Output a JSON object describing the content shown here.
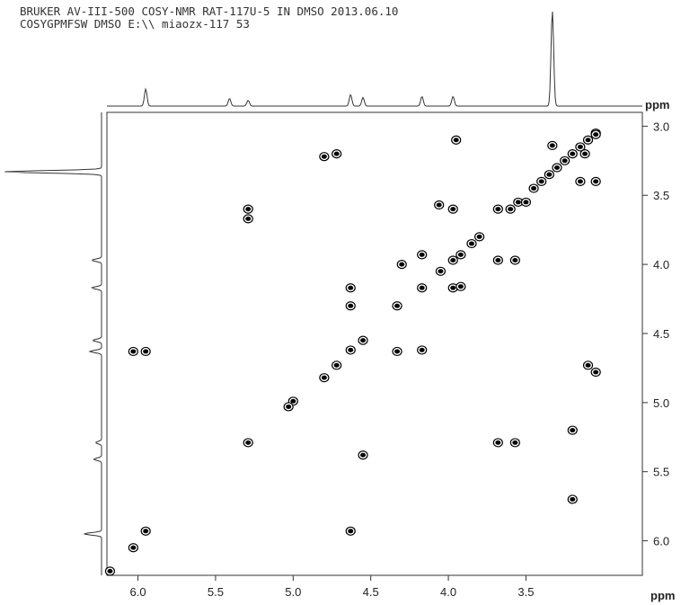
{
  "header": {
    "line1": "BRUKER AV-III-500 COSY-NMR RAT-117U-5 IN DMSO 2013.06.10",
    "line2": "COSYGPMFSW DMSO E:\\\\ miaozx-117 53"
  },
  "chart_data": {
    "type": "scatter",
    "title": "",
    "xlabel": "ppm",
    "ylabel": "ppm",
    "xlim": [
      6.2,
      2.75
    ],
    "ylim": [
      2.9,
      6.25
    ],
    "x_axis_reversed": true,
    "y_axis_increases_downward": true,
    "x_tick_labels": [
      "6.0",
      "5.5",
      "5.0",
      "4.5",
      "4.0",
      "3.5"
    ],
    "y_tick_labels": [
      "3.0",
      "3.5",
      "4.0",
      "4.5",
      "5.0",
      "5.5",
      "6.0"
    ],
    "grid": false,
    "projection_peaks_ppm": [
      {
        "ppm": 5.95,
        "height": 0.18
      },
      {
        "ppm": 5.41,
        "height": 0.08
      },
      {
        "ppm": 5.29,
        "height": 0.06
      },
      {
        "ppm": 4.63,
        "height": 0.12
      },
      {
        "ppm": 4.55,
        "height": 0.09
      },
      {
        "ppm": 4.17,
        "height": 0.1
      },
      {
        "ppm": 3.97,
        "height": 0.1
      },
      {
        "ppm": 3.33,
        "height": 1.0
      }
    ],
    "series": [
      {
        "values": [
          {
            "x": 6.03,
            "y": 4.63
          },
          {
            "x": 5.95,
            "y": 4.63
          },
          {
            "x": 5.95,
            "y": 5.93
          },
          {
            "x": 6.03,
            "y": 6.05
          },
          {
            "x": 6.18,
            "y": 6.22
          },
          {
            "x": 5.29,
            "y": 3.6
          },
          {
            "x": 5.29,
            "y": 3.67
          },
          {
            "x": 5.29,
            "y": 5.29
          },
          {
            "x": 4.8,
            "y": 3.22
          },
          {
            "x": 4.72,
            "y": 3.2
          },
          {
            "x": 4.63,
            "y": 4.17
          },
          {
            "x": 4.63,
            "y": 4.3
          },
          {
            "x": 4.63,
            "y": 4.62
          },
          {
            "x": 4.55,
            "y": 4.55
          },
          {
            "x": 4.63,
            "y": 5.93
          },
          {
            "x": 4.55,
            "y": 5.38
          },
          {
            "x": 4.72,
            "y": 4.73
          },
          {
            "x": 4.8,
            "y": 4.82
          },
          {
            "x": 5.0,
            "y": 4.99
          },
          {
            "x": 5.03,
            "y": 5.03
          },
          {
            "x": 4.33,
            "y": 4.3
          },
          {
            "x": 4.33,
            "y": 4.63
          },
          {
            "x": 4.3,
            "y": 4.0
          },
          {
            "x": 4.17,
            "y": 3.93
          },
          {
            "x": 4.17,
            "y": 4.17
          },
          {
            "x": 4.17,
            "y": 4.62
          },
          {
            "x": 4.05,
            "y": 4.05
          },
          {
            "x": 4.06,
            "y": 3.57
          },
          {
            "x": 3.97,
            "y": 3.6
          },
          {
            "x": 3.97,
            "y": 3.97
          },
          {
            "x": 3.92,
            "y": 3.93
          },
          {
            "x": 3.97,
            "y": 4.17
          },
          {
            "x": 3.92,
            "y": 4.16
          },
          {
            "x": 3.95,
            "y": 3.1
          },
          {
            "x": 3.85,
            "y": 3.85
          },
          {
            "x": 3.8,
            "y": 3.8
          },
          {
            "x": 3.68,
            "y": 3.6
          },
          {
            "x": 3.68,
            "y": 3.97
          },
          {
            "x": 3.57,
            "y": 3.97
          },
          {
            "x": 3.68,
            "y": 5.29
          },
          {
            "x": 3.57,
            "y": 5.29
          },
          {
            "x": 3.6,
            "y": 3.6
          },
          {
            "x": 3.55,
            "y": 3.55
          },
          {
            "x": 3.5,
            "y": 3.55
          },
          {
            "x": 3.45,
            "y": 3.45
          },
          {
            "x": 3.4,
            "y": 3.4
          },
          {
            "x": 3.35,
            "y": 3.35
          },
          {
            "x": 3.3,
            "y": 3.3
          },
          {
            "x": 3.25,
            "y": 3.25
          },
          {
            "x": 3.2,
            "y": 3.2
          },
          {
            "x": 3.15,
            "y": 3.15
          },
          {
            "x": 3.1,
            "y": 3.1
          },
          {
            "x": 3.05,
            "y": 3.05
          },
          {
            "x": 3.33,
            "y": 3.14
          },
          {
            "x": 3.15,
            "y": 3.4
          },
          {
            "x": 3.05,
            "y": 3.4
          },
          {
            "x": 3.12,
            "y": 3.2
          },
          {
            "x": 3.1,
            "y": 4.73
          },
          {
            "x": 3.05,
            "y": 4.78
          },
          {
            "x": 3.05,
            "y": 3.06
          },
          {
            "x": 3.2,
            "y": 5.2
          },
          {
            "x": 3.2,
            "y": 5.7
          }
        ]
      }
    ]
  }
}
